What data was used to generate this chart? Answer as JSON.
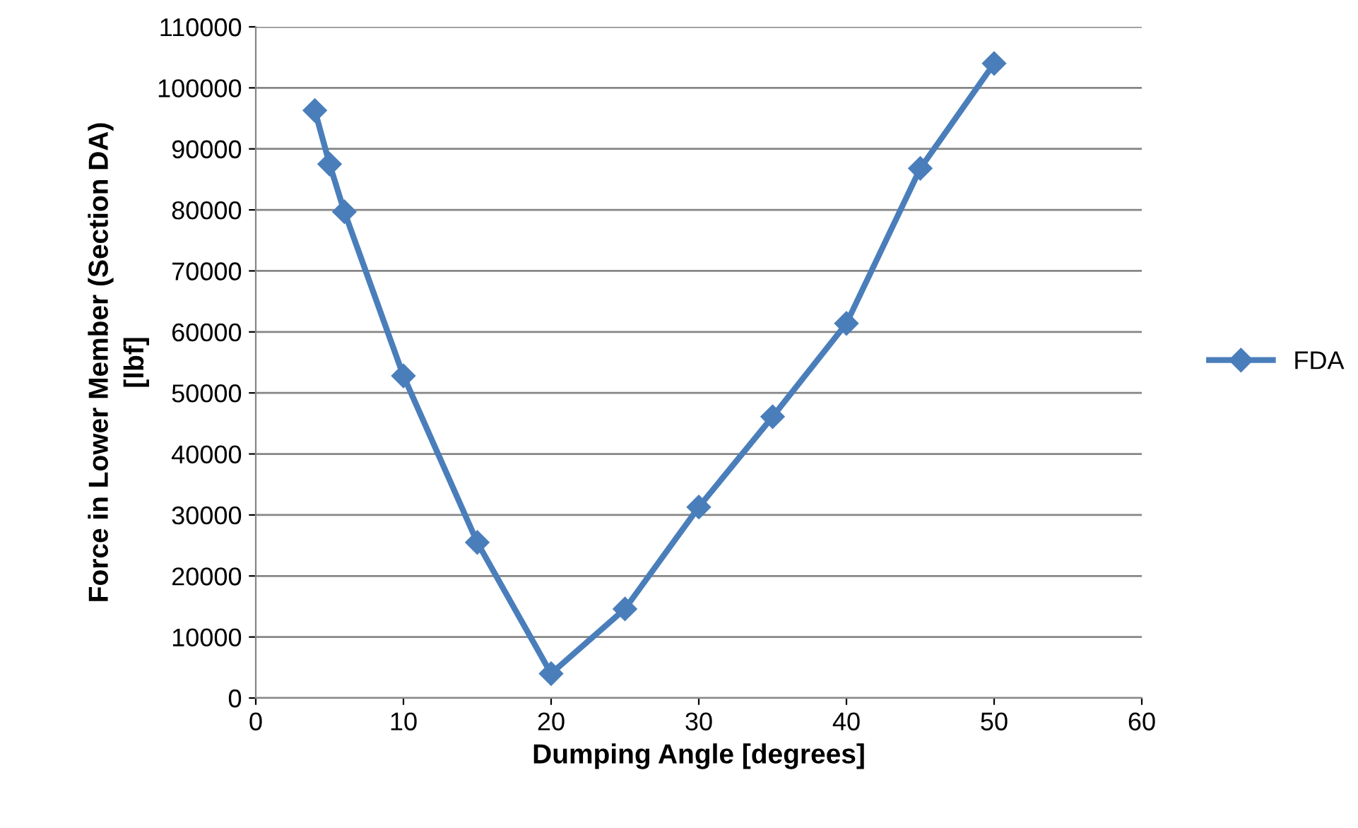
{
  "chart_data": {
    "type": "line",
    "xlabel": "Dumping Angle [degrees]",
    "ylabel": "Force in Lower Member (Section DA)\n[lbf]",
    "x": [
      4,
      5,
      6,
      10,
      15,
      20,
      25,
      30,
      35,
      40,
      45,
      50
    ],
    "series": [
      {
        "name": "FDA",
        "color": "#4a7ebb",
        "values": [
          96300,
          87500,
          79700,
          52800,
          25500,
          4000,
          14600,
          31300,
          46100,
          61400,
          86800,
          104000
        ]
      }
    ],
    "xlim": [
      0,
      60
    ],
    "xticks": [
      0,
      10,
      20,
      30,
      40,
      50,
      60
    ],
    "ylim": [
      0,
      110000
    ],
    "yticks": [
      0,
      10000,
      20000,
      30000,
      40000,
      50000,
      60000,
      70000,
      80000,
      90000,
      100000,
      110000
    ],
    "grid": "y",
    "legend": "right",
    "marker": "diamond",
    "line_style": "solid"
  }
}
